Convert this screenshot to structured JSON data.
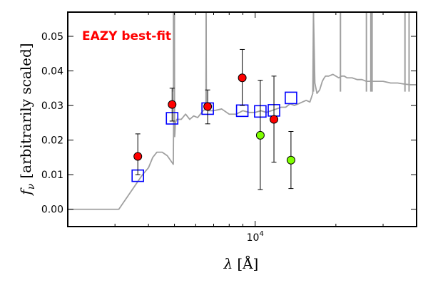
{
  "chart_data": {
    "type": "scatter",
    "xscale": "log",
    "xlim": [
      2000,
      40000
    ],
    "ylim": [
      -0.005,
      0.057
    ],
    "grid": false,
    "xlabel_parts": {
      "symbol": "λ",
      "unit": "[Å]"
    },
    "ylabel_parts": {
      "symbol": "f",
      "sub": "ν",
      "text": "[arbitrarily scaled]"
    },
    "x_ticks": [
      {
        "value": 10000,
        "base": "10",
        "exp": "4"
      }
    ],
    "y_ticks": [
      {
        "value": 0.0,
        "label": "0.00"
      },
      {
        "value": 0.01,
        "label": "0.01"
      },
      {
        "value": 0.02,
        "label": "0.02"
      },
      {
        "value": 0.03,
        "label": "0.03"
      },
      {
        "value": 0.04,
        "label": "0.04"
      },
      {
        "value": 0.05,
        "label": "0.05"
      }
    ],
    "annotation": {
      "text": "EAZY best-fit",
      "color": "#ff0000"
    },
    "colors": {
      "template": "#a0a0a0",
      "model_box": "#0000ff",
      "detection": "#ff0000",
      "nondetection": "#7fff00",
      "errorbar": "#000000"
    },
    "template_spectrum": {
      "x": [
        2000,
        3100,
        3800,
        4000,
        4150,
        4300,
        4500,
        4700,
        4950,
        5000,
        5005,
        5010,
        5020,
        5040,
        5100,
        5300,
        5500,
        5700,
        5900,
        6100,
        6400,
        6550,
        6563,
        6580,
        6700,
        7000,
        7500,
        8000,
        8500,
        9000,
        9500,
        10000,
        10500,
        11000,
        11500,
        12000,
        12500,
        13000,
        13500,
        14000,
        14500,
        15000,
        15500,
        16000,
        16400,
        16500,
        16700,
        17000,
        17400,
        17800,
        18100,
        18300,
        18800,
        19500,
        20000,
        20500,
        21000,
        21500,
        22000,
        23000,
        24000,
        25000,
        26000,
        27000,
        28000,
        30000,
        32000,
        34000,
        36000,
        38000,
        40000
      ],
      "y": [
        0.0,
        0.0,
        0.01,
        0.012,
        0.015,
        0.0165,
        0.0165,
        0.0155,
        0.013,
        0.057,
        0.028,
        0.021,
        0.022,
        0.025,
        0.026,
        0.026,
        0.0275,
        0.026,
        0.027,
        0.0265,
        0.0285,
        0.029,
        0.055,
        0.029,
        0.0285,
        0.0285,
        0.029,
        0.0275,
        0.0275,
        0.0285,
        0.028,
        0.028,
        0.0285,
        0.028,
        0.0285,
        0.029,
        0.0295,
        0.0295,
        0.0305,
        0.03,
        0.0305,
        0.031,
        0.0315,
        0.031,
        0.0335,
        0.057,
        0.0365,
        0.0335,
        0.0345,
        0.037,
        0.038,
        0.0385,
        0.0385,
        0.039,
        0.0385,
        0.038,
        0.0385,
        0.0385,
        0.038,
        0.038,
        0.0375,
        0.0375,
        0.037,
        0.037,
        0.037,
        0.037,
        0.0365,
        0.0365,
        0.0362,
        0.036,
        0.036
      ]
    },
    "emission_spikes": [
      4960,
      6563,
      16500,
      20800,
      26000,
      27000,
      27300,
      36200,
      37500
    ],
    "model_fluxes": {
      "x": [
        3650,
        4900,
        6650,
        8950,
        10450,
        11750,
        13600
      ],
      "y": [
        0.0097,
        0.0263,
        0.0291,
        0.0285,
        0.0283,
        0.0286,
        0.0322
      ]
    },
    "observed_fluxes": [
      {
        "x": 3650,
        "y": 0.0153,
        "err_low": 0.0053,
        "err_high": 0.0065,
        "detected": true
      },
      {
        "x": 4900,
        "y": 0.0303,
        "err_low": 0.0048,
        "err_high": 0.0047,
        "detected": true
      },
      {
        "x": 6650,
        "y": 0.0297,
        "err_low": 0.005,
        "err_high": 0.0048,
        "detected": true
      },
      {
        "x": 8950,
        "y": 0.038,
        "err_low": 0.008,
        "err_high": 0.0082,
        "detected": true
      },
      {
        "x": 10450,
        "y": 0.0214,
        "err_low": 0.0157,
        "err_high": 0.0159,
        "detected": false
      },
      {
        "x": 11750,
        "y": 0.026,
        "err_low": 0.0124,
        "err_high": 0.0125,
        "detected": true
      },
      {
        "x": 13600,
        "y": 0.0142,
        "err_low": 0.0082,
        "err_high": 0.0083,
        "detected": false
      }
    ]
  }
}
